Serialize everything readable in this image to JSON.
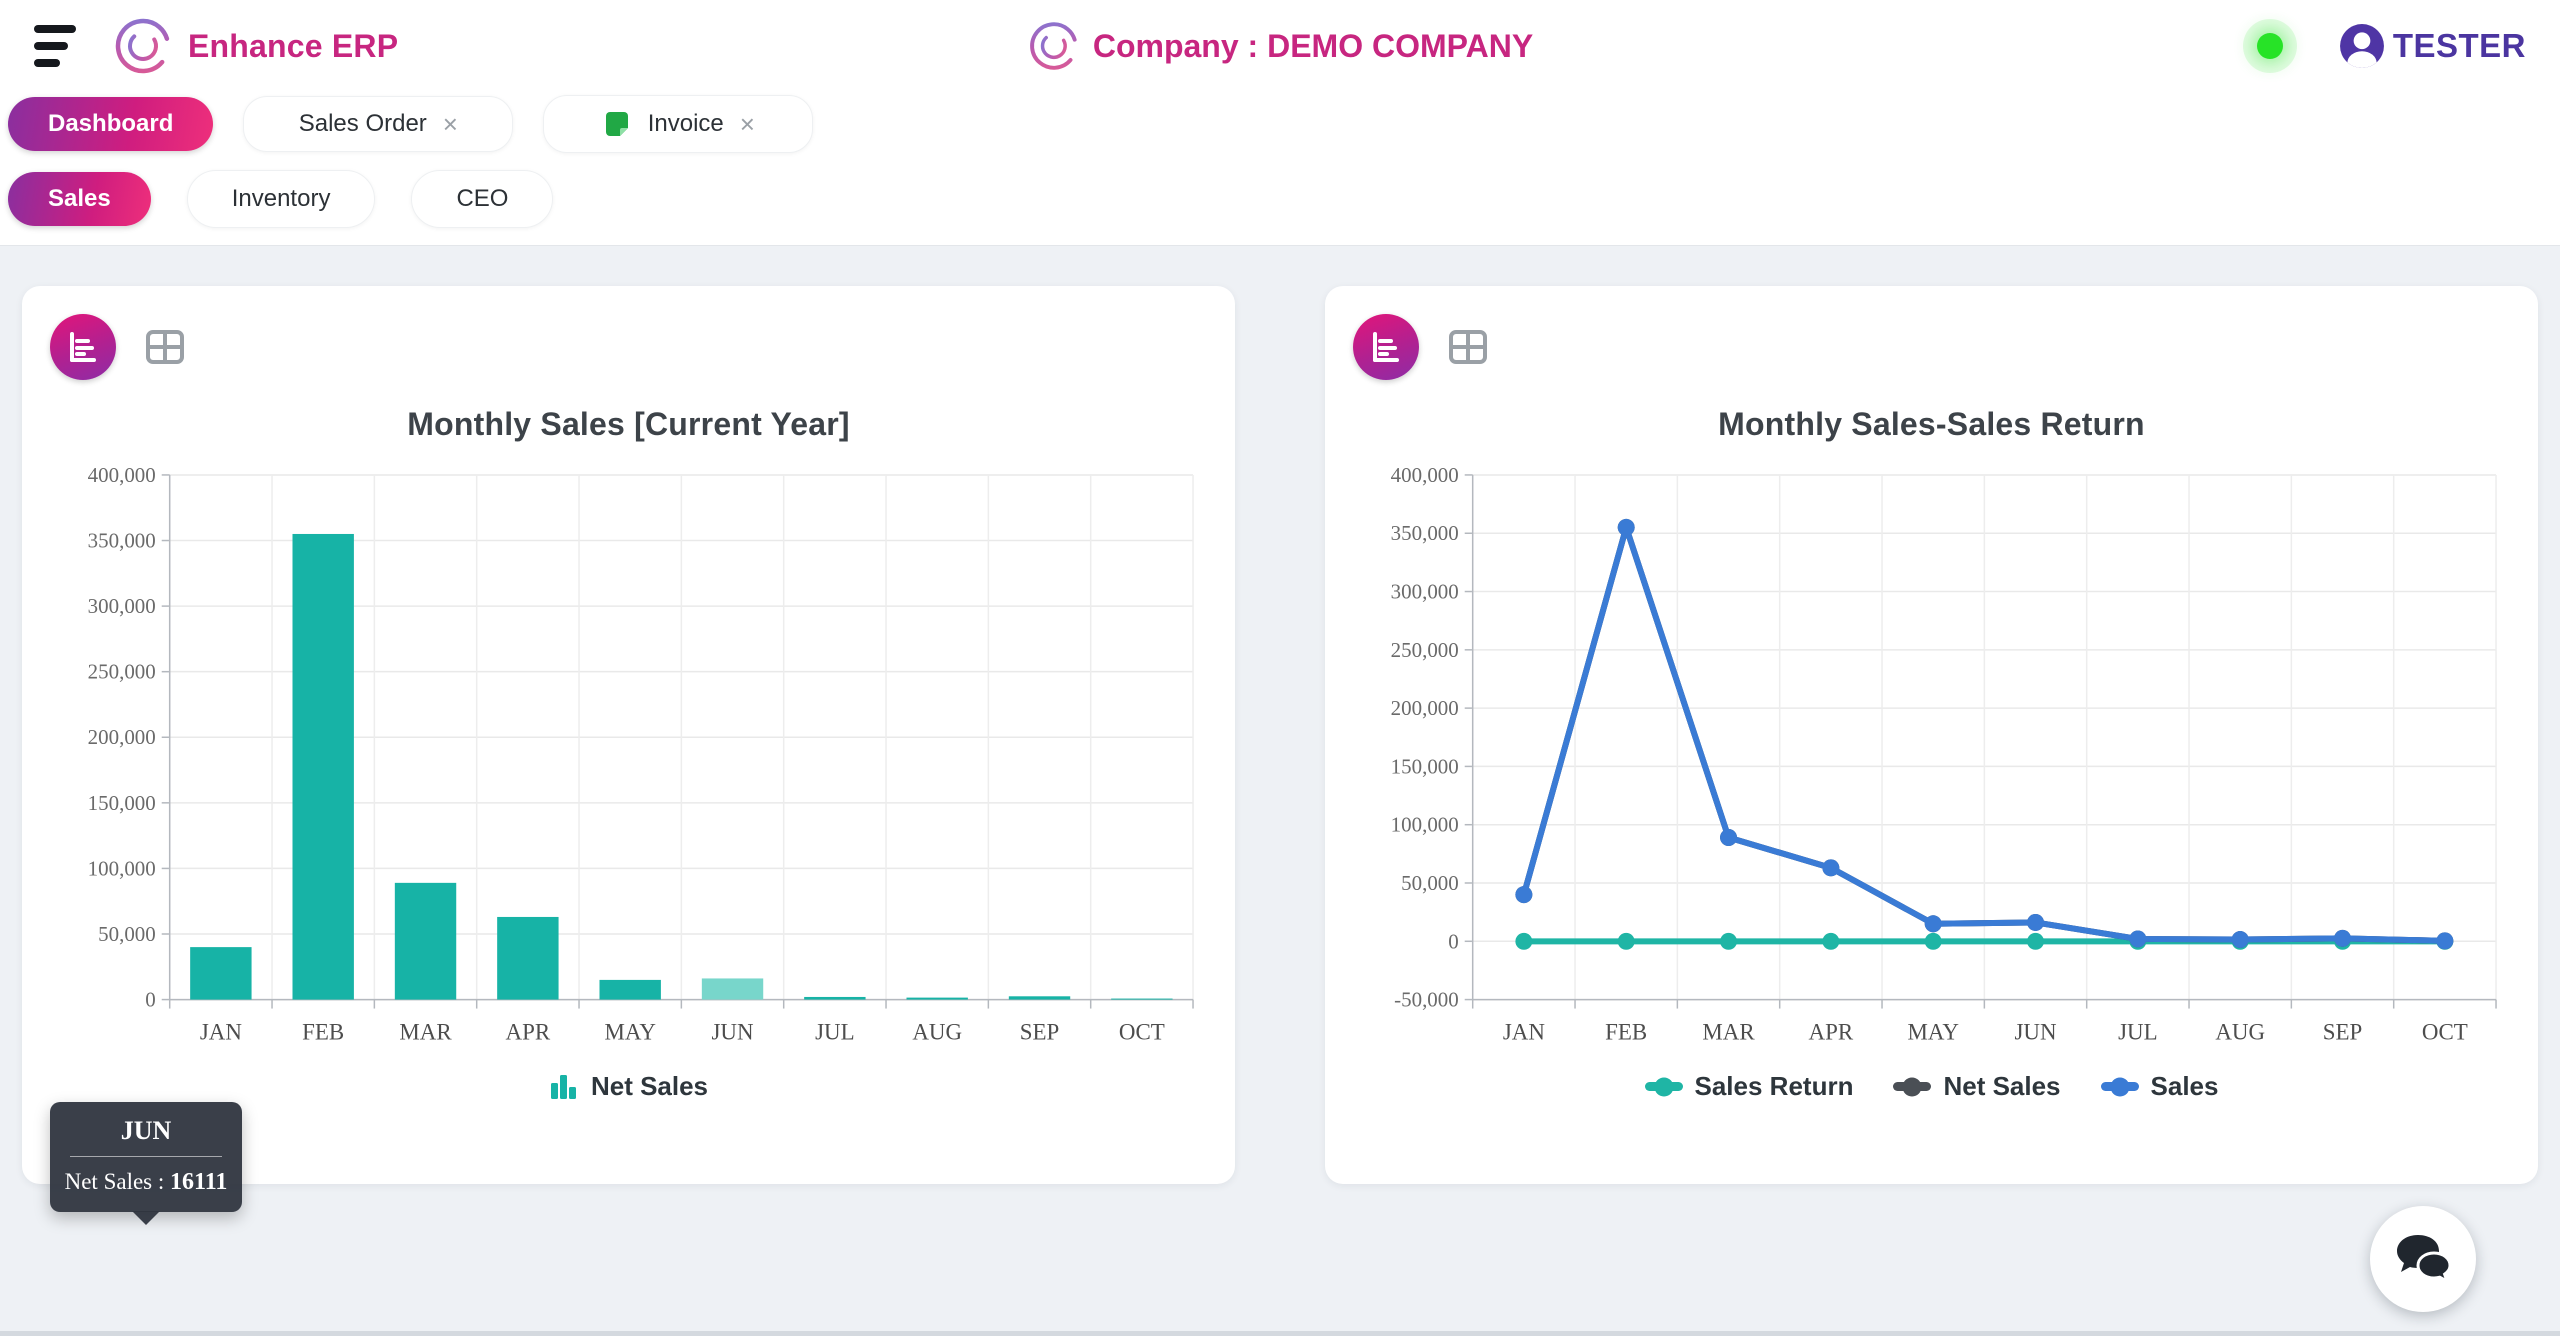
{
  "header": {
    "brand": "Enhance ERP",
    "company_label": "Company : DEMO COMPANY",
    "user_name": "TESTER",
    "status_color": "#27e327",
    "brand_color": "#c72680",
    "user_color": "#4b35a0"
  },
  "tabs": [
    {
      "label": "Dashboard",
      "active": true
    },
    {
      "label": "Sales Order",
      "close": "×"
    },
    {
      "label": "Invoice",
      "close": "×",
      "icon": "invoice-note-icon"
    }
  ],
  "subtabs": [
    {
      "label": "Sales",
      "active": true
    },
    {
      "label": "Inventory"
    },
    {
      "label": "CEO"
    }
  ],
  "tooltip": {
    "title": "JUN",
    "series_label": "Net Sales :",
    "value": "16111"
  },
  "chart_data": [
    {
      "type": "bar",
      "title": "Monthly Sales [Current Year]",
      "categories": [
        "JAN",
        "FEB",
        "MAR",
        "APR",
        "MAY",
        "JUN",
        "JUL",
        "AUG",
        "SEP",
        "OCT"
      ],
      "series": [
        {
          "name": "Net Sales",
          "color": "#17b3a6",
          "values": [
            40000,
            355000,
            89000,
            63000,
            15000,
            16111,
            2000,
            1500,
            2500,
            400
          ]
        }
      ],
      "ylim": [
        0,
        400000
      ],
      "ytick_step": 50000,
      "grid": true,
      "legend_position": "bottom",
      "highlight_index": 5,
      "highlight_color": "#78d6cb",
      "xlabel": "",
      "ylabel": ""
    },
    {
      "type": "line",
      "title": "Monthly Sales-Sales Return",
      "categories": [
        "JAN",
        "FEB",
        "MAR",
        "APR",
        "MAY",
        "JUN",
        "JUL",
        "AUG",
        "SEP",
        "OCT"
      ],
      "series": [
        {
          "name": "Sales Return",
          "color": "#1fb5a5",
          "values": [
            0,
            0,
            0,
            0,
            0,
            0,
            0,
            0,
            0,
            0
          ]
        },
        {
          "name": "Net Sales",
          "color": "#4a4f55",
          "values": [
            40000,
            355000,
            89000,
            63000,
            15000,
            16111,
            2000,
            1500,
            2500,
            400
          ]
        },
        {
          "name": "Sales",
          "color": "#3a7bd5",
          "values": [
            40000,
            355000,
            89000,
            63000,
            15000,
            16111,
            2000,
            1500,
            2500,
            400
          ]
        }
      ],
      "ylim": [
        -50000,
        400000
      ],
      "ytick_step": 50000,
      "grid": true,
      "legend_position": "bottom",
      "xlabel": "",
      "ylabel": ""
    }
  ]
}
